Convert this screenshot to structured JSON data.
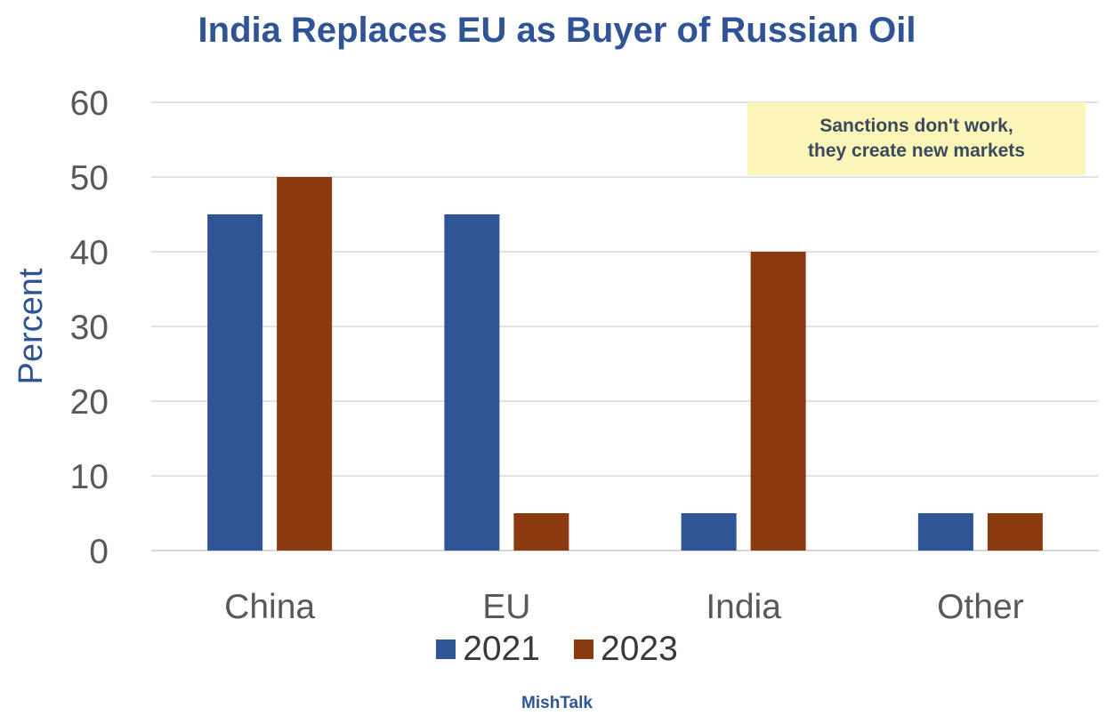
{
  "chart_data": {
    "type": "bar",
    "title": "India Replaces EU as Buyer of Russian Oil",
    "ylabel": "Percent",
    "xlabel": "",
    "categories": [
      "China",
      "EU",
      "India",
      "Other"
    ],
    "series": [
      {
        "name": "2021",
        "values": [
          45,
          45,
          5,
          5
        ],
        "color": "#2f5597"
      },
      {
        "name": "2023",
        "values": [
          50,
          5,
          40,
          5
        ],
        "color": "#8b3a0f"
      }
    ],
    "ylim": [
      0,
      60
    ],
    "yticks": [
      "0",
      "10",
      "20",
      "30",
      "40",
      "50",
      "60"
    ],
    "grid": true,
    "legend": "bottom",
    "annotation": {
      "line1": "Sanctions don't work,",
      "line2": "they create new markets"
    }
  },
  "footer": {
    "watermark": "MishTalk"
  },
  "colors": {
    "title": "#2f5496",
    "annotation_bg": "#fbf5b8",
    "gridline": "#d9d9d9",
    "axis_text": "#595959"
  }
}
